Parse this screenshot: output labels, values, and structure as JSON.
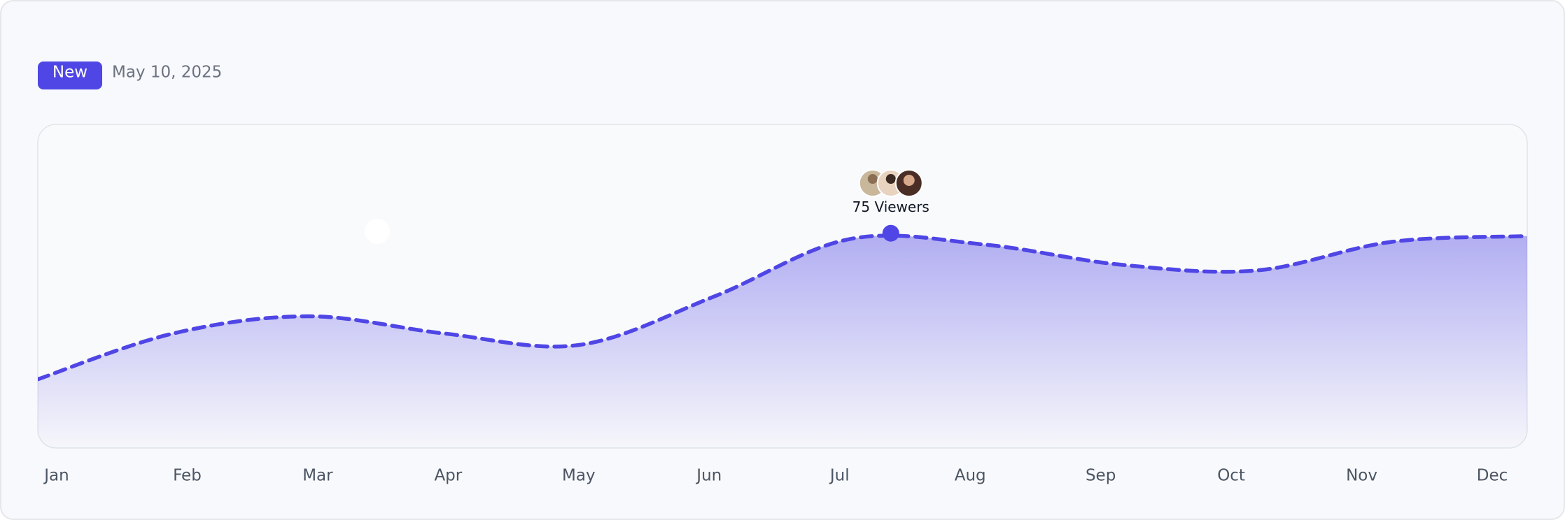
{
  "badge": "New",
  "date": "May 10, 2025",
  "chart_data": {
    "type": "area",
    "x": [
      0,
      1,
      2,
      3,
      4,
      5,
      6,
      7,
      8,
      9,
      10,
      11
    ],
    "values": [
      24,
      40,
      46,
      40,
      36,
      53,
      73,
      71,
      64,
      62,
      72,
      74
    ],
    "color": "#4f46e5",
    "xlim": [
      0,
      11
    ],
    "ylim": [
      0,
      113
    ],
    "xticks": [
      {
        "value": 0,
        "label": "Jan"
      },
      {
        "value": 1,
        "label": "Feb"
      },
      {
        "value": 2,
        "label": "Mar"
      },
      {
        "value": 3,
        "label": "Apr"
      },
      {
        "value": 4,
        "label": "May"
      },
      {
        "value": 5,
        "label": "Jun"
      },
      {
        "value": 6,
        "label": "Jul"
      },
      {
        "value": 7,
        "label": "Aug"
      },
      {
        "value": 8,
        "label": "Sep"
      },
      {
        "value": 9,
        "label": "Oct"
      },
      {
        "value": 10,
        "label": "Nov"
      },
      {
        "value": 11,
        "label": "Dec"
      }
    ],
    "highlight": {
      "x": 6.3,
      "value": 75,
      "label": "75 Viewers"
    }
  }
}
